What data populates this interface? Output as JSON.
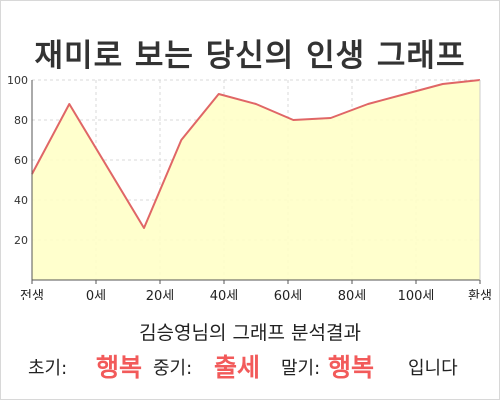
{
  "page": {
    "title": "재미로 보는 당신의 인생 그래프",
    "subtitle": "김승영님의 그래프 분석결과",
    "summary": {
      "early_label": "초기:",
      "early_value": "행복",
      "mid_label": "중기:",
      "mid_value": "출세",
      "late_label": "말기:",
      "late_value": "행복",
      "ending": "입니다"
    }
  },
  "colors": {
    "line": "#e06666",
    "fill": "#ffffc8",
    "grid": "#d8d8d8",
    "highlight": "#f25a5a"
  },
  "chart_data": {
    "type": "area",
    "title": "재미로 보는 당신의 인생 그래프",
    "xlabel": "",
    "ylabel": "",
    "x_tick_labels": [
      "전생",
      "0세",
      "20세",
      "40세",
      "60세",
      "80세",
      "100세",
      "환생"
    ],
    "y_ticks": [
      20,
      40,
      60,
      80,
      100
    ],
    "ylim": [
      0,
      100
    ],
    "grid": true,
    "x": [
      -10,
      0,
      20,
      30,
      40,
      50,
      60,
      70,
      80,
      90,
      100,
      110
    ],
    "values": [
      53,
      88,
      26,
      70,
      93,
      88,
      80,
      81,
      88,
      93,
      98,
      100
    ]
  }
}
